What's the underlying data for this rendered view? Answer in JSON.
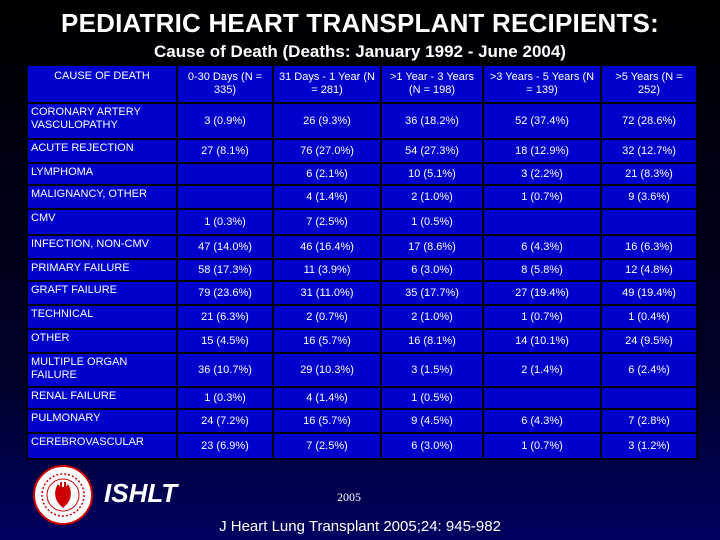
{
  "title": "PEDIATRIC HEART TRANSPLANT RECIPIENTS:",
  "subtitle": "Cause of Death (Deaths: January 1992 - June 2004)",
  "table": {
    "columns": [
      "CAUSE OF DEATH",
      "0-30 Days (N = 335)",
      "31 Days - 1 Year (N = 281)",
      ">1 Year - 3 Years (N = 198)",
      ">3 Years - 5 Years (N = 139)",
      ">5 Years (N = 252)"
    ],
    "rows": [
      {
        "cause": "CORONARY ARTERY VASCULOPATHY",
        "values": [
          "3 (0.9%)",
          "26 (9.3%)",
          "36 (18.2%)",
          "52 (37.4%)",
          "72 (28.6%)"
        ]
      },
      {
        "cause": "ACUTE REJECTION",
        "values": [
          "27 (8.1%)",
          "76 (27.0%)",
          "54 (27.3%)",
          "18 (12.9%)",
          "32 (12.7%)"
        ]
      },
      {
        "cause": "LYMPHOMA",
        "values": [
          "",
          "6 (2.1%)",
          "10 (5.1%)",
          "3 (2.2%)",
          "21 (8.3%)"
        ]
      },
      {
        "cause": "MALIGNANCY, OTHER",
        "values": [
          "",
          "4 (1.4%)",
          "2 (1.0%)",
          "1 (0.7%)",
          "9 (3.6%)"
        ]
      },
      {
        "cause": "CMV",
        "values": [
          "1 (0.3%)",
          "7 (2.5%)",
          "1 (0.5%)",
          "",
          ""
        ]
      },
      {
        "cause": "INFECTION, NON-CMV",
        "values": [
          "47 (14.0%)",
          "46 (16.4%)",
          "17 (8.6%)",
          "6 (4.3%)",
          "16 (6.3%)"
        ]
      },
      {
        "cause": "PRIMARY FAILURE",
        "values": [
          "58 (17.3%)",
          "11 (3.9%)",
          "6 (3.0%)",
          "8 (5.8%)",
          "12 (4.8%)"
        ]
      },
      {
        "cause": "GRAFT FAILURE",
        "values": [
          "79 (23.6%)",
          "31 (11.0%)",
          "35 (17.7%)",
          "27 (19.4%)",
          "49 (19.4%)"
        ]
      },
      {
        "cause": "TECHNICAL",
        "values": [
          "21 (6.3%)",
          "2 (0.7%)",
          "2 (1.0%)",
          "1 (0.7%)",
          "1 (0.4%)"
        ]
      },
      {
        "cause": "OTHER",
        "values": [
          "15 (4.5%)",
          "16 (5.7%)",
          "16 (8.1%)",
          "14 (10.1%)",
          "24 (9.5%)"
        ]
      },
      {
        "cause": "MULTIPLE ORGAN FAILURE",
        "values": [
          "36 (10.7%)",
          "29 (10.3%)",
          "3 (1.5%)",
          "2 (1.4%)",
          "6 (2.4%)"
        ]
      },
      {
        "cause": "RENAL FAILURE",
        "values": [
          "1 (0.3%)",
          "4 (1.4%)",
          "1 (0.5%)",
          "",
          ""
        ]
      },
      {
        "cause": "PULMONARY",
        "values": [
          "24 (7.2%)",
          "16 (5.7%)",
          "9 (4.5%)",
          "6 (4.3%)",
          "7 (2.8%)"
        ]
      },
      {
        "cause": "CEREBROVASCULAR",
        "values": [
          "23 (6.9%)",
          "7 (2.5%)",
          "6 (3.0%)",
          "1 (0.7%)",
          "3 (1.2%)"
        ]
      }
    ]
  },
  "footer": {
    "org": "ISHLT",
    "year": "2005",
    "citation": "J Heart Lung Transplant 2005;24: 945-982"
  },
  "colors": {
    "table_fill": "#0000cc",
    "background": "#000000",
    "text": "#ffffff",
    "logo_red": "#cc0000"
  },
  "icons": {
    "logo": "ishlt-seal-logo"
  }
}
